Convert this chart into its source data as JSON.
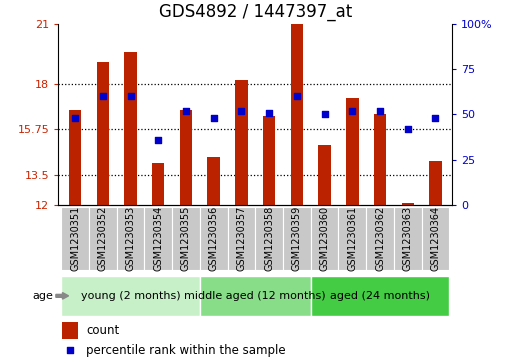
{
  "title": "GDS4892 / 1447397_at",
  "samples": [
    "GSM1230351",
    "GSM1230352",
    "GSM1230353",
    "GSM1230354",
    "GSM1230355",
    "GSM1230356",
    "GSM1230357",
    "GSM1230358",
    "GSM1230359",
    "GSM1230360",
    "GSM1230361",
    "GSM1230362",
    "GSM1230363",
    "GSM1230364"
  ],
  "counts": [
    16.7,
    19.1,
    19.6,
    14.1,
    16.7,
    14.4,
    18.2,
    16.4,
    21.0,
    15.0,
    17.3,
    16.5,
    12.1,
    14.2
  ],
  "percentiles": [
    48,
    60,
    60,
    36,
    52,
    48,
    52,
    51,
    60,
    50,
    52,
    52,
    42,
    48
  ],
  "ymin": 12,
  "ymax": 21,
  "yticks_left": [
    12,
    13.5,
    15.75,
    18,
    21
  ],
  "ytick_labels_left": [
    "12",
    "13.5",
    "15.75",
    "18",
    "21"
  ],
  "right_yticks_pct": [
    0,
    25,
    50,
    75,
    100
  ],
  "right_yticklabels": [
    "0",
    "25",
    "50",
    "75",
    "100%"
  ],
  "bar_color": "#bb2200",
  "dot_color": "#0000cc",
  "bg_plot": "#ffffff",
  "bg_fig": "#ffffff",
  "xtick_bg_color": "#c8c8c8",
  "groups": [
    {
      "label": "young (2 months)",
      "start": 0,
      "end": 4,
      "color": "#c8f0c8"
    },
    {
      "label": "middle aged (12 months)",
      "start": 5,
      "end": 8,
      "color": "#88dd88"
    },
    {
      "label": "aged (24 months)",
      "start": 9,
      "end": 13,
      "color": "#44cc44"
    }
  ],
  "age_label": "age",
  "legend_count_label": "count",
  "legend_percentile_label": "percentile rank within the sample",
  "title_fontsize": 12,
  "tick_fontsize": 8,
  "sample_fontsize": 7,
  "group_fontsize": 8,
  "left_tick_color": "#cc2200",
  "right_tick_color": "#0000cc",
  "bar_width": 0.45
}
